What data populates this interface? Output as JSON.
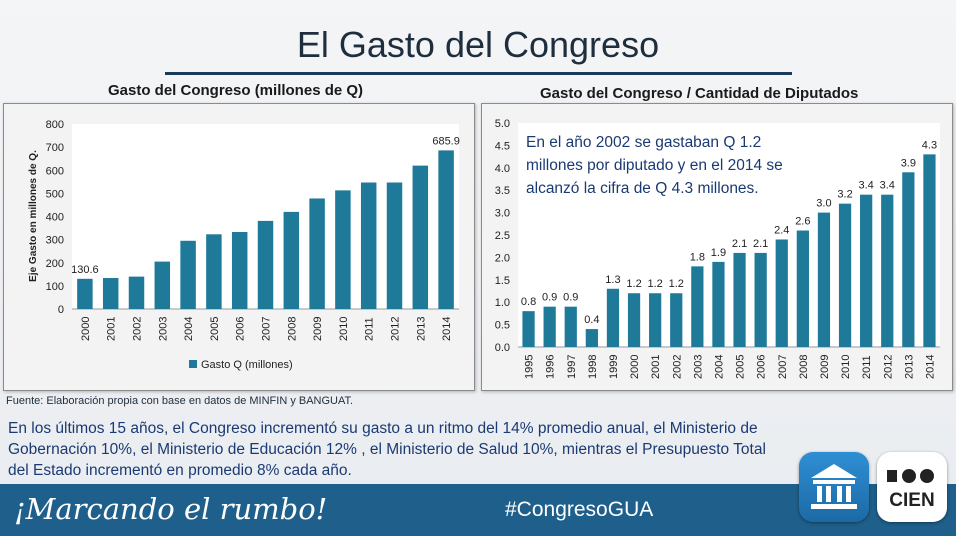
{
  "page": {
    "title": "El Gasto del Congreso",
    "source_note": "Fuente: Elaboración propia con base en datos de MINFIN y BANGUAT.",
    "summary": "En los últimos 15 años, el Congreso incrementó su gasto a un ritmo del 14% promedio anual, el Ministerio de Gobernación 10%, el Ministerio de Educación 12% , el Ministerio de Salud 10%, mientras el Presupuesto Total del Estado incrementó en promedio 8% cada año.",
    "footer": {
      "slogan": "¡Marcando el rumbo!",
      "hashtag": "#CongresoGUA",
      "logo_cien_text": "CIEN"
    },
    "colors": {
      "bar": "#1f7a9a",
      "footer": "#1e5f8b",
      "summary_text": "#1b3a72"
    }
  },
  "chart_data": [
    {
      "type": "bar",
      "title": "Gasto del Congreso (millones de Q)",
      "xlabel": "",
      "ylabel": "Eje Gasto en millones de Q.",
      "categories": [
        "2000",
        "2001",
        "2002",
        "2003",
        "2004",
        "2005",
        "2006",
        "2007",
        "2008",
        "2009",
        "2010",
        "2011",
        "2012",
        "2013",
        "2014"
      ],
      "series": [
        {
          "name": "Gasto Q (millones)",
          "values": [
            130.6,
            134,
            140,
            205,
            295,
            323,
            333,
            381,
            420,
            478,
            513,
            547,
            547,
            620,
            685.9
          ]
        }
      ],
      "data_labels": {
        "2000": "130.6",
        "2014": "685.9"
      },
      "ylim": [
        0,
        800
      ],
      "yticks": [
        "0",
        "100",
        "200",
        "300",
        "400",
        "500",
        "600",
        "700",
        "800"
      ],
      "legend": "bottom",
      "grid": false
    },
    {
      "type": "bar",
      "title": "Gasto del Congreso / Cantidad de Diputados",
      "xlabel": "",
      "ylabel": "",
      "categories": [
        "1995",
        "1996",
        "1997",
        "1998",
        "1999",
        "2000",
        "2001",
        "2002",
        "2003",
        "2004",
        "2005",
        "2006",
        "2007",
        "2008",
        "2009",
        "2010",
        "2011",
        "2012",
        "2013",
        "2014"
      ],
      "series": [
        {
          "values": [
            0.8,
            0.9,
            0.9,
            0.4,
            1.3,
            1.2,
            1.2,
            1.2,
            1.8,
            1.9,
            2.1,
            2.1,
            2.4,
            2.6,
            3.0,
            3.2,
            3.4,
            3.4,
            3.9,
            4.3
          ]
        }
      ],
      "data_labels": [
        "0.8",
        "0.9",
        "0.9",
        "0.4",
        "1.3",
        "1.2",
        "1.2",
        "1.2",
        "1.8",
        "1.9",
        "2.1",
        "2.1",
        "2.4",
        "2.6",
        "3.0",
        "3.2",
        "3.4",
        "3.4",
        "3.9",
        "4.3"
      ],
      "ylim": [
        0,
        5
      ],
      "yticks": [
        "0.0",
        "0.5",
        "1.0",
        "1.5",
        "2.0",
        "2.5",
        "3.0",
        "3.5",
        "4.0",
        "4.5",
        "5.0"
      ],
      "annotation": "En el año 2002 se gastaban Q 1.2 millones por diputado y en el 2014 se alcanzó la cifra de Q 4.3 millones.",
      "legend": "none",
      "grid": false
    }
  ]
}
